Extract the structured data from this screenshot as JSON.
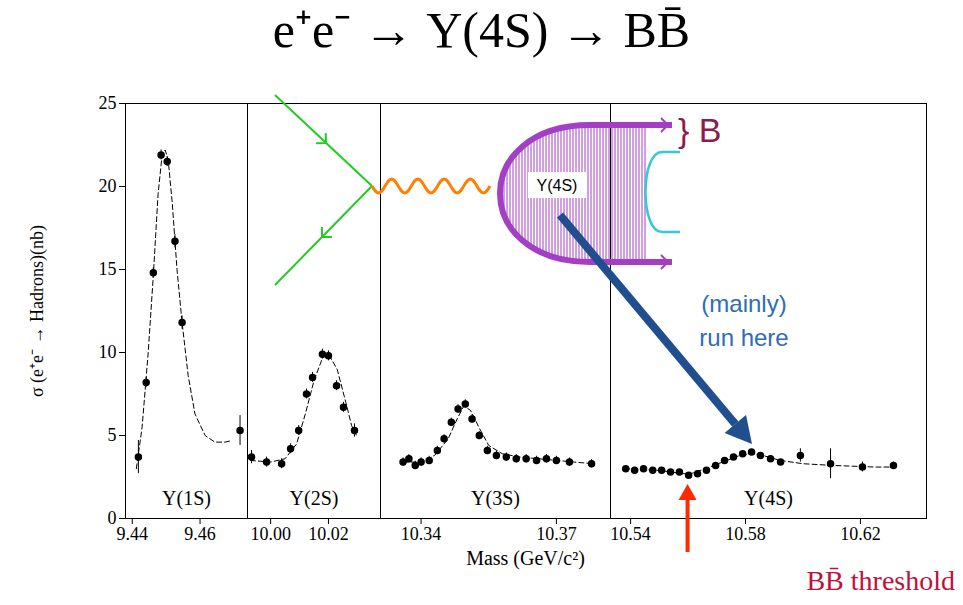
{
  "chart_data": {
    "type": "scatter",
    "title": "e⁺e⁻ → Υ(4S) → BB̄",
    "ylabel": "σ (e⁺e⁻ → Hadrons)(nb)",
    "xlabel": "Mass (GeV/c²)",
    "ylim": [
      0,
      25
    ],
    "yticks": [
      0,
      5,
      10,
      15,
      20,
      25
    ],
    "grid": false,
    "marker": "circle",
    "color": "#000000",
    "panels": [
      {
        "label": "Υ(1S)",
        "xlim": [
          9.438,
          9.474
        ],
        "xticks": [
          9.44,
          9.46
        ],
        "x": [
          9.4418,
          9.4441,
          9.4462,
          9.4485,
          9.4503,
          9.4526,
          9.4547,
          9.4718
        ],
        "values": [
          3.7,
          8.2,
          14.8,
          21.9,
          21.5,
          16.7,
          11.8,
          5.3
        ],
        "errors": [
          1.0,
          0.3,
          0.3,
          0.3,
          0.3,
          0.4,
          0.4,
          0.9
        ],
        "fit": {
          "line_style": "dashed",
          "x": [
            9.4412,
            9.4429,
            9.4447,
            9.4462,
            9.4476,
            9.4488,
            9.4497,
            9.4506,
            9.4518,
            9.4532,
            9.4547,
            9.4565,
            9.4585,
            9.4615,
            9.4644,
            9.4674,
            9.4694
          ],
          "values": [
            3.0,
            5.5,
            10.0,
            14.6,
            19.5,
            21.9,
            22.2,
            21.6,
            19.0,
            15.0,
            11.8,
            8.6,
            6.3,
            5.0,
            4.6,
            4.6,
            4.7
          ]
        }
      },
      {
        "label": "Υ(2S)",
        "xlim": [
          9.992,
          10.038
        ],
        "xticks": [
          {
            "value": 10,
            "label": "10.00"
          },
          10.02
        ],
        "x": [
          9.9934,
          9.9986,
          10.0038,
          10.0069,
          10.0097,
          10.0124,
          10.0145,
          10.0179,
          10.02,
          10.0228,
          10.0252,
          10.029
        ],
        "values": [
          3.7,
          3.4,
          3.3,
          4.2,
          5.3,
          7.5,
          8.5,
          9.9,
          9.8,
          8.0,
          6.7,
          5.3
        ],
        "errors": [
          0.4,
          0.3,
          0.3,
          0.3,
          0.3,
          0.3,
          0.3,
          0.3,
          0.3,
          0.3,
          0.3,
          0.4
        ],
        "fit": {
          "line_style": "dashed",
          "x": [
            9.993,
            10.0,
            10.005,
            10.009,
            10.012,
            10.015,
            10.018,
            10.02,
            10.023,
            10.026,
            10.028,
            10.03
          ],
          "values": [
            3.5,
            3.4,
            3.6,
            4.5,
            6.3,
            8.3,
            9.7,
            9.9,
            9.0,
            7.0,
            5.6,
            4.9
          ]
        }
      },
      {
        "label": "Υ(3S)",
        "xlim": [
          10.331,
          10.382
        ],
        "xticks": [
          10.34,
          10.37
        ],
        "x": [
          10.336,
          10.3373,
          10.3387,
          10.34,
          10.3418,
          10.3436,
          10.3451,
          10.3467,
          10.3482,
          10.3498,
          10.3513,
          10.3529,
          10.3547,
          10.3567,
          10.3589,
          10.3611,
          10.3633,
          10.3656,
          10.3678,
          10.37,
          10.3729,
          10.3778
        ],
        "values": [
          3.4,
          3.6,
          3.2,
          3.4,
          3.5,
          4.1,
          4.8,
          5.8,
          6.6,
          6.9,
          6.0,
          5.0,
          4.1,
          3.8,
          3.7,
          3.6,
          3.6,
          3.5,
          3.6,
          3.5,
          3.4,
          3.3
        ],
        "errors": [
          0.25,
          0.25,
          0.25,
          0.25,
          0.25,
          0.25,
          0.25,
          0.25,
          0.25,
          0.25,
          0.25,
          0.25,
          0.25,
          0.25,
          0.25,
          0.25,
          0.25,
          0.25,
          0.25,
          0.25,
          0.25,
          0.25
        ],
        "fit": {
          "line_style": "dashed",
          "x": [
            10.336,
            10.34,
            10.343,
            10.346,
            10.348,
            10.3495,
            10.351,
            10.353,
            10.355,
            10.358,
            10.362,
            10.37,
            10.378
          ],
          "values": [
            3.4,
            3.4,
            3.8,
            4.8,
            6.0,
            6.8,
            6.5,
            5.4,
            4.4,
            3.9,
            3.7,
            3.5,
            3.3
          ]
        }
      },
      {
        "label": "Υ(4S)",
        "xlim": [
          10.533,
          10.643
        ],
        "xticks": [
          10.54,
          10.58,
          10.62
        ],
        "x": [
          10.5383,
          10.5414,
          10.5445,
          10.5477,
          10.5508,
          10.5539,
          10.557,
          10.5602,
          10.5633,
          10.5664,
          10.5696,
          10.5727,
          10.5758,
          10.579,
          10.5821,
          10.5852,
          10.5887,
          10.5922,
          10.5991,
          10.6096,
          10.6207,
          10.6315
        ],
        "values": [
          3.0,
          2.9,
          3.0,
          2.9,
          2.9,
          2.8,
          2.8,
          2.6,
          2.7,
          2.9,
          3.2,
          3.5,
          3.7,
          3.9,
          4.0,
          3.8,
          3.6,
          3.4,
          3.8,
          3.3,
          3.1,
          3.2
        ],
        "errors": [
          0.15,
          0.15,
          0.15,
          0.15,
          0.15,
          0.15,
          0.15,
          0.15,
          0.15,
          0.15,
          0.15,
          0.15,
          0.15,
          0.15,
          0.15,
          0.15,
          0.15,
          0.15,
          0.4,
          0.9,
          0.3,
          0.2
        ],
        "fit": {
          "line_style": "dashed",
          "x": [
            10.538,
            10.55,
            10.558,
            10.561,
            10.566,
            10.572,
            10.578,
            10.582,
            10.586,
            10.592,
            10.6,
            10.61,
            10.625,
            10.632
          ],
          "values": [
            3.0,
            2.9,
            2.7,
            2.7,
            3.0,
            3.4,
            3.8,
            3.9,
            3.8,
            3.5,
            3.3,
            3.2,
            3.1,
            3.1
          ]
        }
      }
    ],
    "annotations": {
      "diagram_label": "Υ(4S)",
      "brace_label": "} B",
      "run_label": [
        "(mainly)",
        "run here"
      ],
      "threshold": {
        "x": 10.56,
        "label": "BB̄ threshold"
      }
    }
  }
}
